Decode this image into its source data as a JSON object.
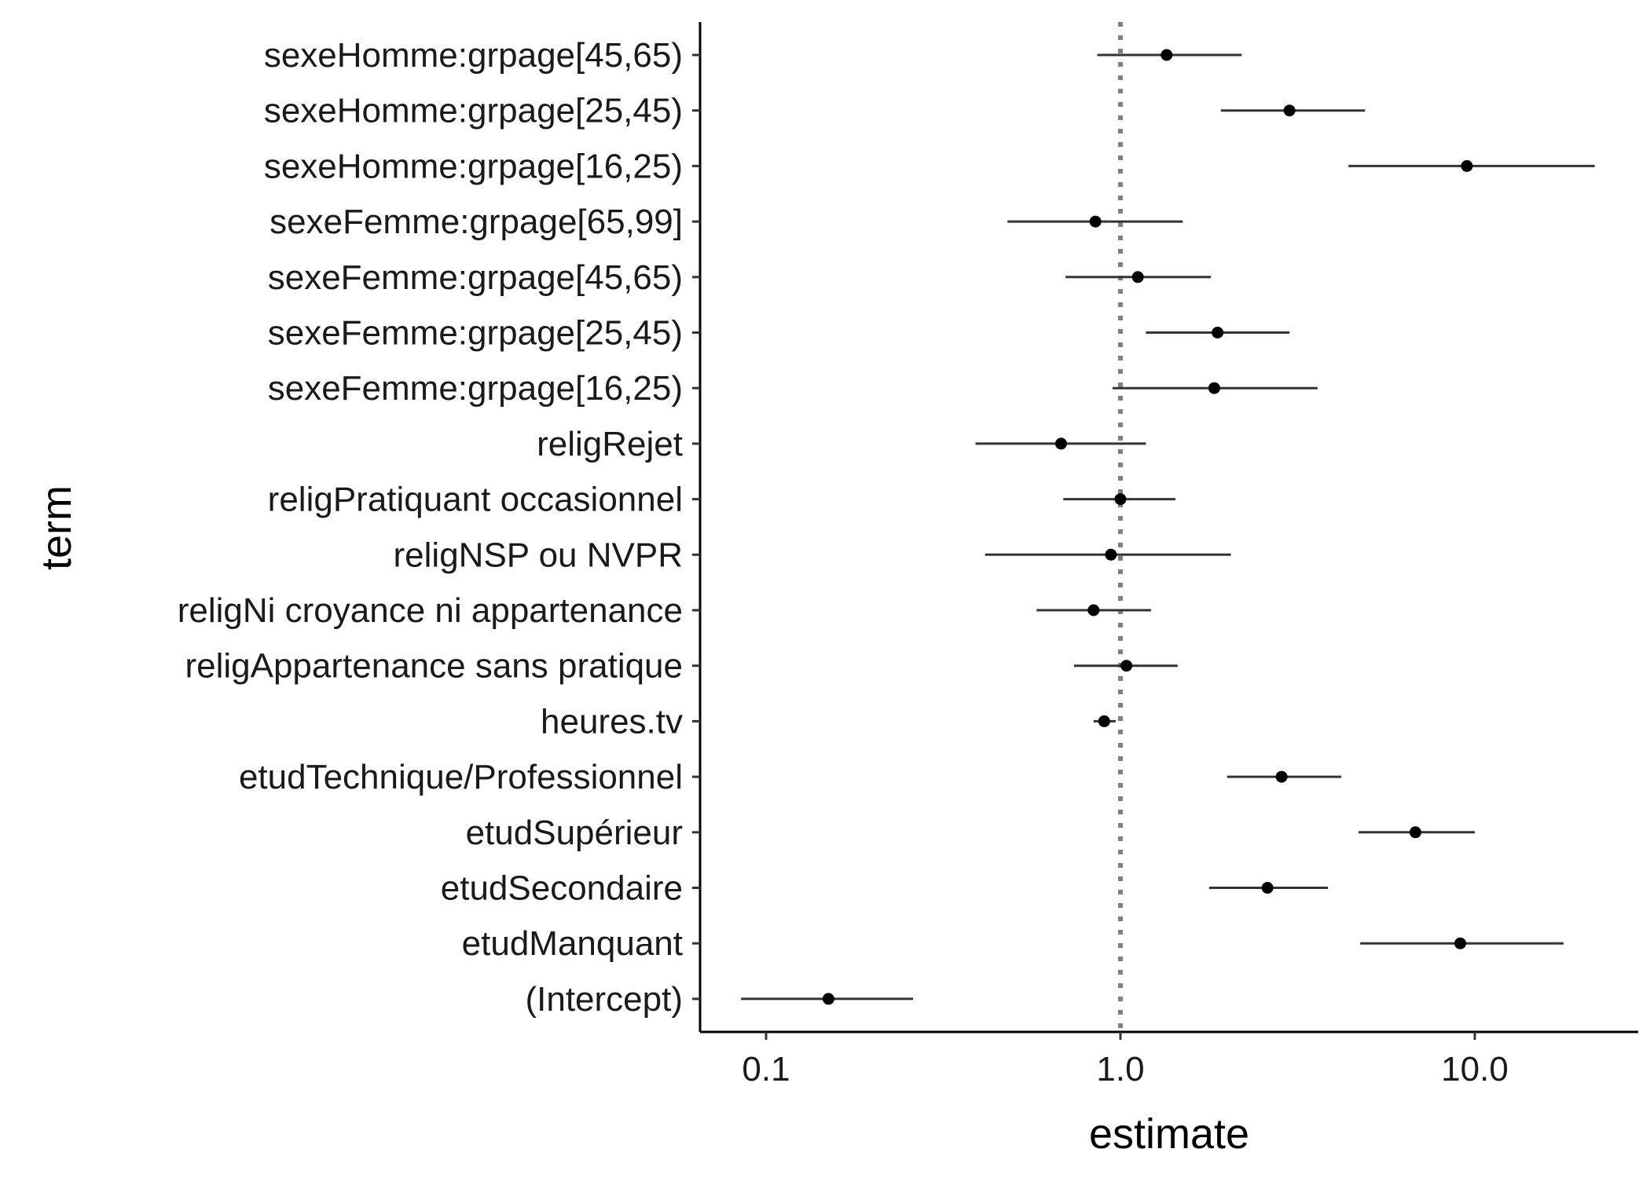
{
  "chart_data": {
    "type": "scatter",
    "subtype": "coefficient-plot-with-intervals",
    "xlabel": "estimate",
    "ylabel": "term",
    "x_scale": "log10",
    "xlim": [
      0.065,
      28
    ],
    "x_ticks": [
      0.1,
      1.0,
      10.0
    ],
    "x_tick_labels": [
      "0.1",
      "1.0",
      "10.0"
    ],
    "reference_line": {
      "x": 1.0,
      "style": "dotted",
      "color": "#808080"
    },
    "grid": false,
    "legend": "none",
    "point_color": "#000000",
    "interval_color": "#333333",
    "terms": [
      {
        "term": "sexeHomme:grpage[45,65)",
        "estimate": 1.35,
        "low": 0.86,
        "high": 2.2
      },
      {
        "term": "sexeHomme:grpage[25,45)",
        "estimate": 3.0,
        "low": 1.92,
        "high": 4.9
      },
      {
        "term": "sexeHomme:grpage[16,25)",
        "estimate": 9.5,
        "low": 4.4,
        "high": 21.8
      },
      {
        "term": "sexeFemme:grpage[65,99]",
        "estimate": 0.85,
        "low": 0.48,
        "high": 1.5
      },
      {
        "term": "sexeFemme:grpage[45,65)",
        "estimate": 1.12,
        "low": 0.7,
        "high": 1.8
      },
      {
        "term": "sexeFemme:grpage[25,45)",
        "estimate": 1.88,
        "low": 1.18,
        "high": 3.0
      },
      {
        "term": "sexeFemme:grpage[16,25)",
        "estimate": 1.84,
        "low": 0.95,
        "high": 3.6
      },
      {
        "term": "religRejet",
        "estimate": 0.68,
        "low": 0.39,
        "high": 1.18
      },
      {
        "term": "religPratiquant occasionnel",
        "estimate": 1.0,
        "low": 0.69,
        "high": 1.43
      },
      {
        "term": "religNSP ou NVPR",
        "estimate": 0.94,
        "low": 0.415,
        "high": 2.05
      },
      {
        "term": "religNi croyance ni appartenance",
        "estimate": 0.84,
        "low": 0.58,
        "high": 1.22
      },
      {
        "term": "religAppartenance sans pratique",
        "estimate": 1.04,
        "low": 0.74,
        "high": 1.45
      },
      {
        "term": "heures.tv",
        "estimate": 0.9,
        "low": 0.84,
        "high": 0.97
      },
      {
        "term": "etudTechnique/Professionnel",
        "estimate": 2.85,
        "low": 2.0,
        "high": 4.2
      },
      {
        "term": "etudSupérieur",
        "estimate": 6.8,
        "low": 4.7,
        "high": 10.0
      },
      {
        "term": "etudSecondaire",
        "estimate": 2.6,
        "low": 1.78,
        "high": 3.85
      },
      {
        "term": "etudManquant",
        "estimate": 9.1,
        "low": 4.75,
        "high": 17.8
      },
      {
        "term": "(Intercept)",
        "estimate": 0.15,
        "low": 0.085,
        "high": 0.26
      }
    ]
  }
}
